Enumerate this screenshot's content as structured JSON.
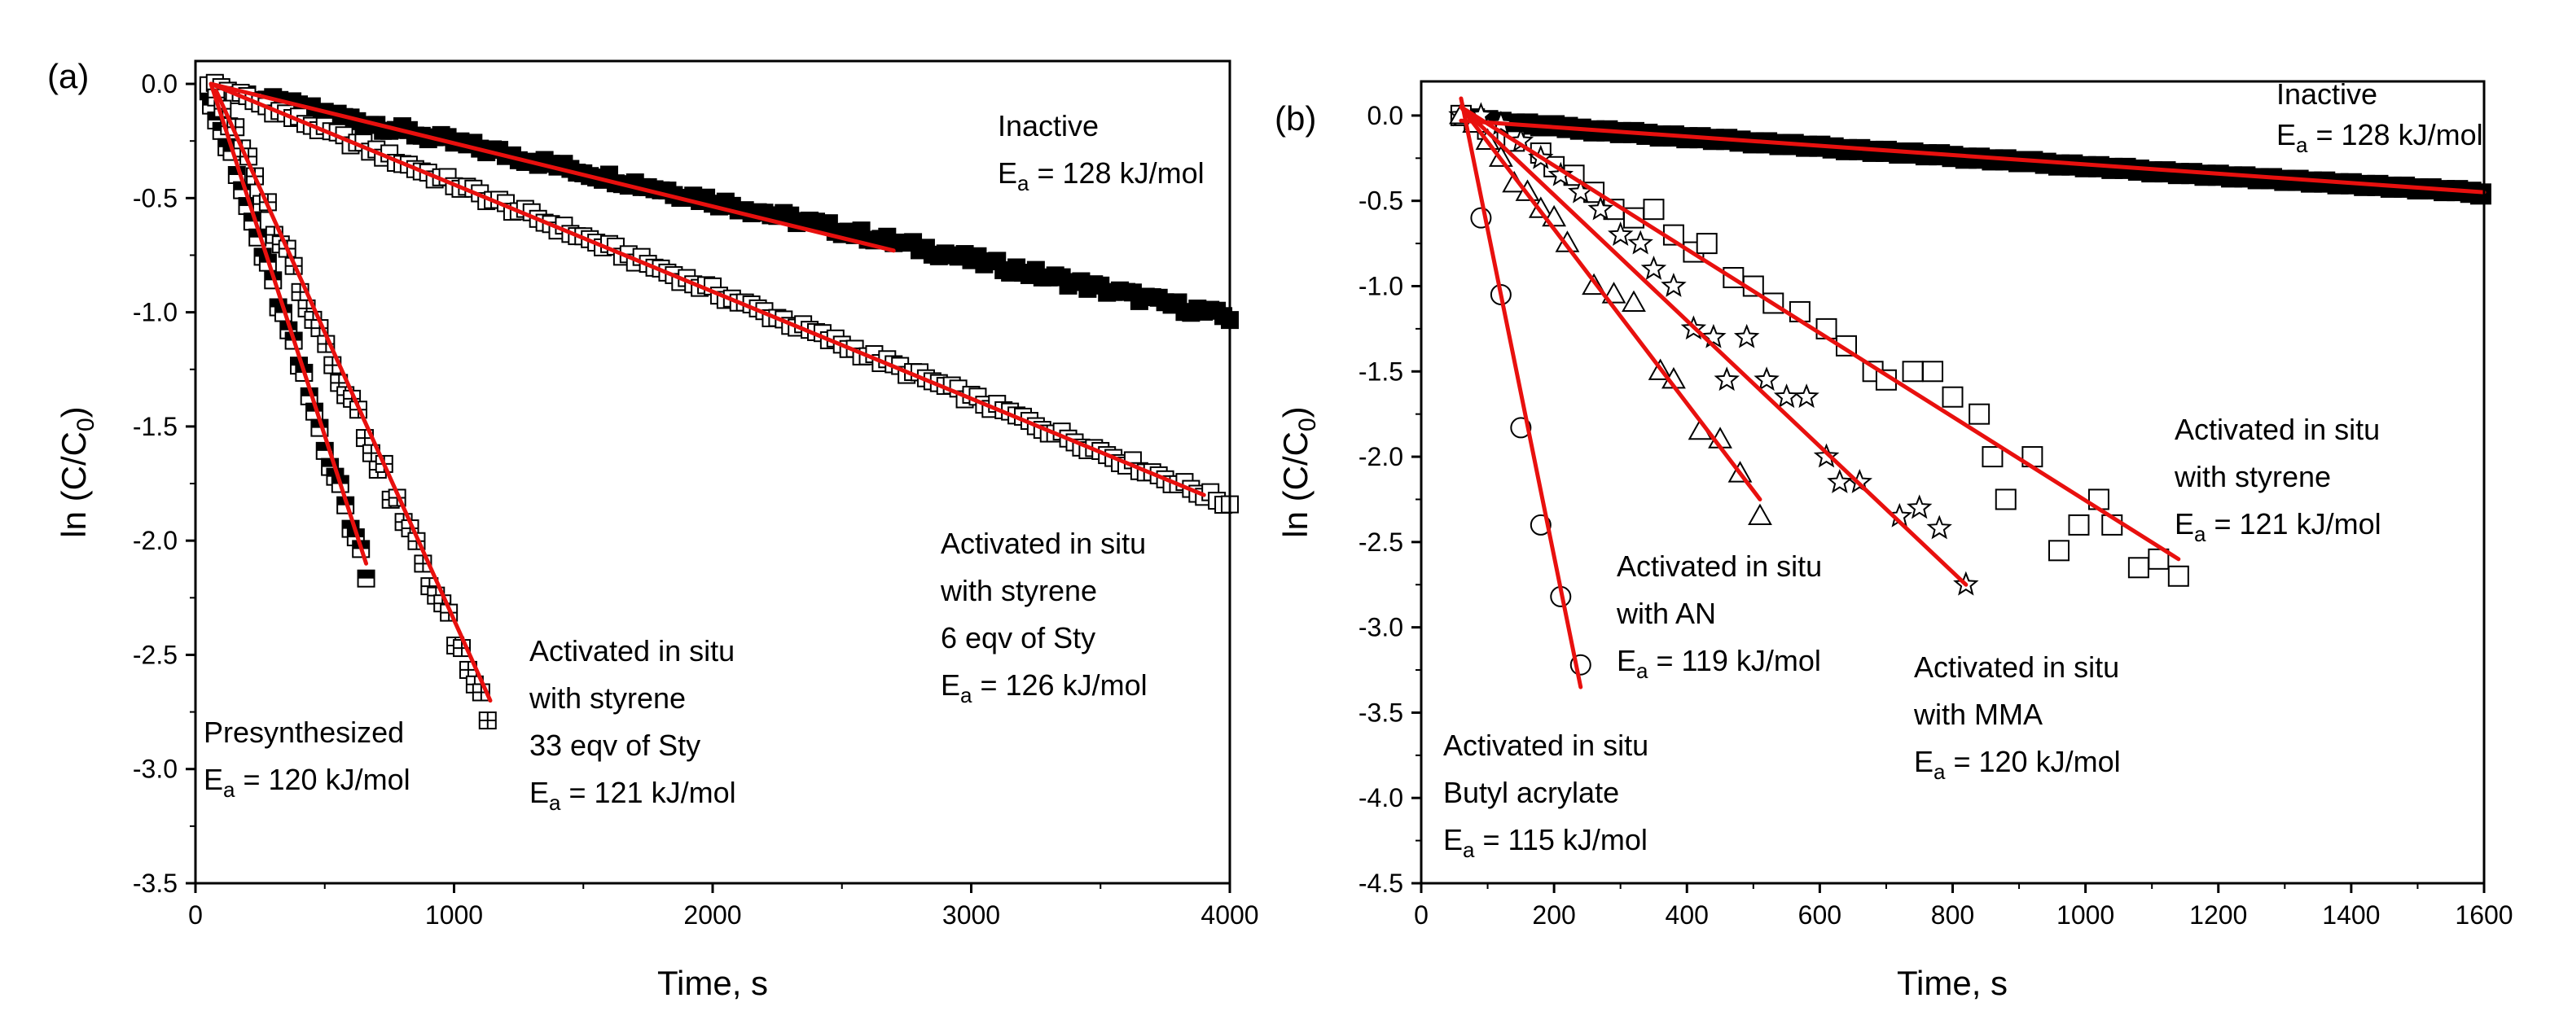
{
  "chart_data": [
    {
      "type": "scatter",
      "panel_label": "(a)",
      "xlabel": "Time, s",
      "ylabel_main": "ln (C/C",
      "ylabel_sub": "0",
      "ylabel_close": ")",
      "xlim": [
        0,
        4000
      ],
      "ylim": [
        -3.5,
        0.1
      ],
      "xticks": [
        "0",
        "1000",
        "2000",
        "3000",
        "4000"
      ],
      "xtick_values": [
        0,
        1000,
        2000,
        3000,
        4000
      ],
      "yticks": [
        "0.0",
        "-0.5",
        "-1.0",
        "-1.5",
        "-2.0",
        "-2.5",
        "-3.0",
        "-3.5"
      ],
      "ytick_values": [
        0,
        -0.5,
        -1.0,
        -1.5,
        -2.0,
        -2.5,
        -3.0,
        -3.5
      ],
      "series": [
        {
          "name": "Inactive",
          "marker": "filled-square",
          "x_start": 50,
          "x_end": 4000,
          "step": 25,
          "slope": -0.000256,
          "intercept": 0.0,
          "noise": 0.02
        },
        {
          "name": "Activated in situ with styrene 6 eqv of Sty",
          "marker": "open-square",
          "x_start": 50,
          "x_end": 4000,
          "step": 25,
          "slope": -0.000468,
          "intercept": 0.03,
          "noise": 0.02
        },
        {
          "name": "Presynthesized",
          "marker": "half-square",
          "x_start": 60,
          "x_end": 660,
          "step": 20,
          "slope": -0.00345,
          "intercept": 0.15,
          "noise": 0.04
        },
        {
          "name": "Activated in situ with styrene 33 eqv of Sty",
          "marker": "cross-square",
          "x_start": 80,
          "x_end": 1140,
          "step": 25,
          "slope": -0.00258,
          "intercept": 0.17,
          "noise": 0.05
        }
      ],
      "fit_lines": [
        {
          "x": [
            60,
            2700
          ],
          "y": [
            0.0,
            -0.73
          ]
        },
        {
          "x": [
            60,
            3900
          ],
          "y": [
            0.0,
            -1.8
          ]
        },
        {
          "x": [
            60,
            660
          ],
          "y": [
            0.0,
            -2.1
          ]
        },
        {
          "x": [
            80,
            1140
          ],
          "y": [
            -0.03,
            -2.7
          ]
        }
      ],
      "annotations": [
        {
          "id": "inactive",
          "lines": [
            {
              "text": "Inactive"
            },
            {
              "text": "E",
              "sub": "a",
              "rest": " = 128 kJ/mol"
            }
          ]
        },
        {
          "id": "sty6",
          "lines": [
            {
              "text": "Activated in situ"
            },
            {
              "text": "with styrene"
            },
            {
              "text": "6 eqv of Sty"
            },
            {
              "text": "E",
              "sub": "a",
              "rest": " = 126 kJ/mol"
            }
          ]
        },
        {
          "id": "sty33",
          "lines": [
            {
              "text": "Activated in situ"
            },
            {
              "text": "with styrene"
            },
            {
              "text": "33 eqv of Sty"
            },
            {
              "text": "E",
              "sub": "a",
              "rest": " = 121 kJ/mol"
            }
          ]
        },
        {
          "id": "presyn",
          "lines": [
            {
              "text": "Presynthesized"
            },
            {
              "text": "E",
              "sub": "a",
              "rest": " = 120 kJ/mol"
            }
          ]
        }
      ]
    },
    {
      "type": "scatter",
      "panel_label": "(b)",
      "xlabel": "Time, s",
      "ylabel_main": "ln (C/C",
      "ylabel_sub": "0",
      "ylabel_close": ")",
      "xlim": [
        0,
        1600
      ],
      "ylim": [
        -4.5,
        0.2
      ],
      "xticks": [
        "0",
        "200",
        "400",
        "600",
        "800",
        "1000",
        "1200",
        "1400",
        "1600"
      ],
      "xtick_values": [
        0,
        200,
        400,
        600,
        800,
        1000,
        1200,
        1400,
        1600
      ],
      "yticks": [
        "0.0",
        "-0.5",
        "-1.0",
        "-1.5",
        "-2.0",
        "-2.5",
        "-3.0",
        "-3.5",
        "-4.0",
        "-4.5"
      ],
      "ytick_values": [
        0,
        -0.5,
        -1.0,
        -1.5,
        -2.0,
        -2.5,
        -3.0,
        -3.5,
        -4.0,
        -4.5
      ],
      "series": [
        {
          "name": "Inactive",
          "marker": "filled-square",
          "points": [
            [
              60,
              0.0
            ],
            [
              80,
              -0.02
            ],
            [
              100,
              -0.03
            ],
            [
              120,
              -0.04
            ],
            [
              140,
              -0.05
            ],
            [
              160,
              -0.05
            ],
            [
              180,
              -0.06
            ],
            [
              200,
              -0.06
            ],
            [
              220,
              -0.07
            ],
            [
              240,
              -0.08
            ],
            [
              260,
              -0.09
            ],
            [
              280,
              -0.09
            ],
            [
              300,
              -0.1
            ],
            [
              320,
              -0.1
            ],
            [
              340,
              -0.11
            ],
            [
              360,
              -0.12
            ],
            [
              380,
              -0.12
            ],
            [
              400,
              -0.13
            ],
            [
              420,
              -0.13
            ],
            [
              440,
              -0.14
            ],
            [
              460,
              -0.14
            ],
            [
              480,
              -0.15
            ],
            [
              500,
              -0.16
            ],
            [
              520,
              -0.16
            ],
            [
              540,
              -0.17
            ],
            [
              560,
              -0.17
            ],
            [
              580,
              -0.18
            ],
            [
              600,
              -0.18
            ],
            [
              620,
              -0.19
            ],
            [
              640,
              -0.2
            ],
            [
              660,
              -0.2
            ],
            [
              680,
              -0.21
            ],
            [
              700,
              -0.21
            ],
            [
              720,
              -0.22
            ],
            [
              740,
              -0.22
            ],
            [
              760,
              -0.23
            ],
            [
              780,
              -0.23
            ],
            [
              800,
              -0.24
            ],
            [
              820,
              -0.25
            ],
            [
              840,
              -0.25
            ],
            [
              860,
              -0.26
            ],
            [
              880,
              -0.26
            ],
            [
              900,
              -0.27
            ],
            [
              920,
              -0.27
            ],
            [
              940,
              -0.28
            ],
            [
              960,
              -0.29
            ],
            [
              980,
              -0.29
            ],
            [
              1000,
              -0.3
            ],
            [
              1020,
              -0.3
            ],
            [
              1040,
              -0.31
            ],
            [
              1060,
              -0.31
            ],
            [
              1080,
              -0.32
            ],
            [
              1100,
              -0.33
            ],
            [
              1120,
              -0.33
            ],
            [
              1140,
              -0.34
            ],
            [
              1160,
              -0.34
            ],
            [
              1180,
              -0.35
            ],
            [
              1200,
              -0.35
            ],
            [
              1220,
              -0.36
            ],
            [
              1240,
              -0.36
            ],
            [
              1260,
              -0.37
            ],
            [
              1280,
              -0.37
            ],
            [
              1300,
              -0.38
            ],
            [
              1320,
              -0.38
            ],
            [
              1340,
              -0.39
            ],
            [
              1360,
              -0.39
            ],
            [
              1380,
              -0.4
            ],
            [
              1400,
              -0.4
            ],
            [
              1420,
              -0.41
            ],
            [
              1440,
              -0.41
            ],
            [
              1460,
              -0.42
            ],
            [
              1480,
              -0.42
            ],
            [
              1500,
              -0.43
            ],
            [
              1520,
              -0.43
            ],
            [
              1540,
              -0.44
            ],
            [
              1560,
              -0.44
            ],
            [
              1580,
              -0.45
            ],
            [
              1595,
              -0.46
            ]
          ]
        },
        {
          "name": "Activated in situ with styrene",
          "marker": "open-square",
          "points": [
            [
              60,
              0.0
            ],
            [
              100,
              -0.08
            ],
            [
              140,
              -0.15
            ],
            [
              180,
              -0.22
            ],
            [
              200,
              -0.3
            ],
            [
              230,
              -0.35
            ],
            [
              260,
              -0.45
            ],
            [
              290,
              -0.55
            ],
            [
              320,
              -0.6
            ],
            [
              350,
              -0.55
            ],
            [
              380,
              -0.7
            ],
            [
              410,
              -0.8
            ],
            [
              430,
              -0.75
            ],
            [
              470,
              -0.95
            ],
            [
              500,
              -1.0
            ],
            [
              530,
              -1.1
            ],
            [
              570,
              -1.15
            ],
            [
              610,
              -1.25
            ],
            [
              640,
              -1.35
            ],
            [
              680,
              -1.5
            ],
            [
              700,
              -1.55
            ],
            [
              740,
              -1.5
            ],
            [
              770,
              -1.5
            ],
            [
              800,
              -1.65
            ],
            [
              840,
              -1.75
            ],
            [
              860,
              -2.0
            ],
            [
              880,
              -2.25
            ],
            [
              920,
              -2.0
            ],
            [
              960,
              -2.55
            ],
            [
              990,
              -2.4
            ],
            [
              1020,
              -2.25
            ],
            [
              1040,
              -2.4
            ],
            [
              1080,
              -2.65
            ],
            [
              1110,
              -2.6
            ],
            [
              1140,
              -2.7
            ]
          ]
        },
        {
          "name": "Activated in situ with MMA",
          "marker": "star",
          "points": [
            [
              60,
              0.0
            ],
            [
              90,
              0.0
            ],
            [
              120,
              -0.05
            ],
            [
              150,
              -0.15
            ],
            [
              180,
              -0.25
            ],
            [
              210,
              -0.35
            ],
            [
              240,
              -0.45
            ],
            [
              270,
              -0.55
            ],
            [
              300,
              -0.7
            ],
            [
              330,
              -0.75
            ],
            [
              350,
              -0.9
            ],
            [
              380,
              -1.0
            ],
            [
              410,
              -1.25
            ],
            [
              440,
              -1.3
            ],
            [
              460,
              -1.55
            ],
            [
              490,
              -1.3
            ],
            [
              520,
              -1.55
            ],
            [
              550,
              -1.65
            ],
            [
              580,
              -1.65
            ],
            [
              610,
              -2.0
            ],
            [
              630,
              -2.15
            ],
            [
              660,
              -2.15
            ],
            [
              720,
              -2.35
            ],
            [
              750,
              -2.3
            ],
            [
              780,
              -2.42
            ],
            [
              820,
              -2.75
            ]
          ]
        },
        {
          "name": "Activated in situ with AN",
          "marker": "triangle",
          "points": [
            [
              60,
              0.0
            ],
            [
              80,
              -0.05
            ],
            [
              100,
              -0.15
            ],
            [
              120,
              -0.25
            ],
            [
              140,
              -0.4
            ],
            [
              160,
              -0.45
            ],
            [
              180,
              -0.55
            ],
            [
              200,
              -0.6
            ],
            [
              220,
              -0.75
            ],
            [
              260,
              -1.0
            ],
            [
              290,
              -1.05
            ],
            [
              320,
              -1.1
            ],
            [
              360,
              -1.5
            ],
            [
              380,
              -1.55
            ],
            [
              420,
              -1.85
            ],
            [
              450,
              -1.9
            ],
            [
              480,
              -2.1
            ],
            [
              510,
              -2.35
            ]
          ]
        },
        {
          "name": "Activated in situ Butyl acrylate",
          "marker": "circle",
          "points": [
            [
              90,
              -0.6
            ],
            [
              120,
              -1.05
            ],
            [
              150,
              -1.83
            ],
            [
              180,
              -2.4
            ],
            [
              210,
              -2.82
            ],
            [
              240,
              -3.22
            ]
          ]
        }
      ],
      "fit_lines": [
        {
          "x": [
            60,
            1600
          ],
          "y": [
            -0.03,
            -0.45
          ]
        },
        {
          "x": [
            60,
            1140
          ],
          "y": [
            0.05,
            -2.6
          ]
        },
        {
          "x": [
            60,
            820
          ],
          "y": [
            0.05,
            -2.75
          ]
        },
        {
          "x": [
            60,
            510
          ],
          "y": [
            0.05,
            -2.25
          ]
        },
        {
          "x": [
            60,
            240
          ],
          "y": [
            0.1,
            -3.35
          ]
        }
      ],
      "annotations": [
        {
          "id": "inactive",
          "lines": [
            {
              "text": "Inactive"
            },
            {
              "text": "E",
              "sub": "a",
              "rest": " = 128 kJ/mol"
            }
          ]
        },
        {
          "id": "sty",
          "lines": [
            {
              "text": "Activated in situ"
            },
            {
              "text": "with styrene"
            },
            {
              "text": "E",
              "sub": "a",
              "rest": " = 121 kJ/mol"
            }
          ]
        },
        {
          "id": "an",
          "lines": [
            {
              "text": "Activated in situ"
            },
            {
              "text": "with AN"
            },
            {
              "text": "E",
              "sub": "a",
              "rest": " = 119 kJ/mol"
            }
          ]
        },
        {
          "id": "mma",
          "lines": [
            {
              "text": "Activated in situ"
            },
            {
              "text": "with MMA"
            },
            {
              "text": "E",
              "sub": "a",
              "rest": " = 120 kJ/mol"
            }
          ]
        },
        {
          "id": "ba",
          "lines": [
            {
              "text": "Activated in situ"
            },
            {
              "text": "Butyl acrylate"
            },
            {
              "text": "E",
              "sub": "a",
              "rest": " = 115 kJ/mol"
            }
          ]
        }
      ]
    }
  ]
}
